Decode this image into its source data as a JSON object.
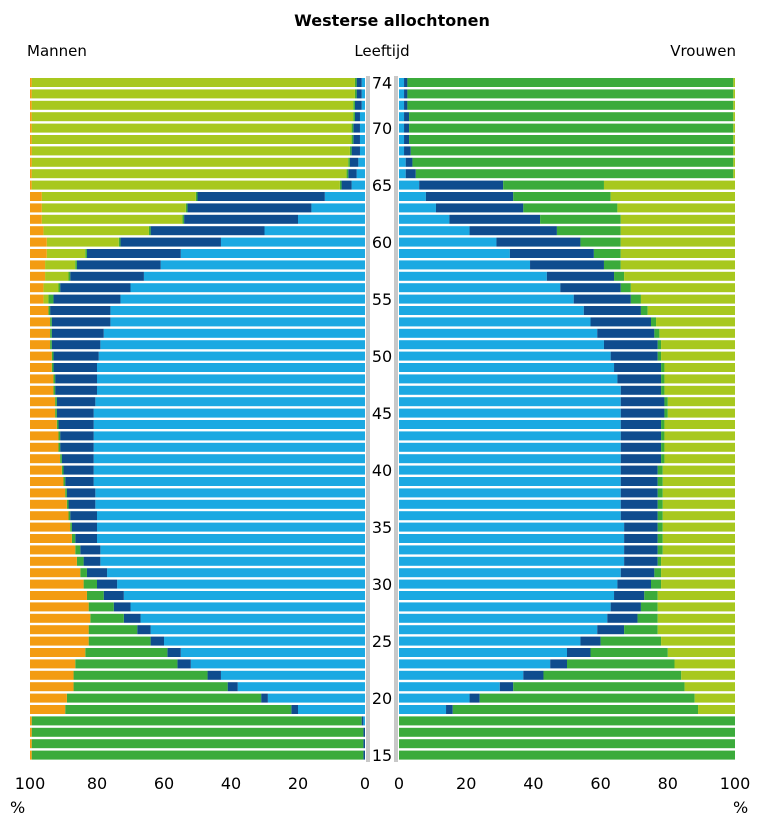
{
  "chart_data": {
    "type": "bar",
    "title": "Westerse allochtonen",
    "left_label": "Mannen",
    "center_label": "Leeftijd",
    "right_label": "Vrouwen",
    "x_unit_left": "%",
    "x_unit_right": "%",
    "xlim": [
      0,
      100
    ],
    "x_ticks": [
      "100",
      "80",
      "60",
      "40",
      "20",
      "0"
    ],
    "x_ticks_right": [
      "0",
      "20",
      "40",
      "60",
      "80",
      "100"
    ],
    "age_labels": [
      "15",
      "20",
      "25",
      "30",
      "35",
      "40",
      "45",
      "50",
      "55",
      "60",
      "65",
      "70",
      "74"
    ],
    "colors": {
      "light_blue": "#1ba9e2",
      "dark_blue": "#0f4c8e",
      "green": "#3bab3b",
      "yellow_green": "#a8c81e",
      "orange": "#f39c12",
      "axis_band": "#c8c8c8"
    },
    "segment_order_from_center": [
      "light_blue",
      "dark_blue",
      "green",
      "yellow_green",
      "orange"
    ],
    "ages": [
      15,
      16,
      17,
      18,
      19,
      20,
      21,
      22,
      23,
      24,
      25,
      26,
      27,
      28,
      29,
      30,
      31,
      32,
      33,
      34,
      35,
      36,
      37,
      38,
      39,
      40,
      41,
      42,
      43,
      44,
      45,
      46,
      47,
      48,
      49,
      50,
      51,
      52,
      53,
      54,
      55,
      56,
      57,
      58,
      59,
      60,
      61,
      62,
      63,
      64,
      65,
      66,
      67,
      68,
      69,
      70,
      71,
      72,
      73,
      74
    ],
    "men": {
      "cumulative": [
        [
          0,
          0.5,
          99.5,
          99.5
        ],
        [
          0,
          0.5,
          99.5,
          99.5
        ],
        [
          0,
          0.5,
          99.5,
          99.5
        ],
        [
          0.5,
          1.0,
          99.5,
          99.5
        ],
        [
          20,
          22,
          89.5,
          89.5
        ],
        [
          29,
          31,
          89,
          89
        ],
        [
          38,
          41,
          87,
          87
        ],
        [
          43,
          47,
          87,
          87
        ],
        [
          52,
          56,
          86.5,
          86.5
        ],
        [
          55,
          59,
          83.5,
          83.5
        ],
        [
          60,
          64,
          82.5,
          82.5
        ],
        [
          64,
          68,
          82.5,
          82.5
        ],
        [
          67,
          72,
          82,
          82
        ],
        [
          70,
          75,
          82.5,
          82.5
        ],
        [
          72,
          78,
          83,
          83
        ],
        [
          74,
          80,
          84,
          84
        ],
        [
          77,
          83,
          85,
          85
        ],
        [
          79,
          84,
          86,
          86
        ],
        [
          79,
          85,
          86.5,
          86.5
        ],
        [
          80,
          86.5,
          87.5,
          87.5
        ],
        [
          80,
          87.5,
          88,
          88
        ],
        [
          80,
          88,
          88.5,
          88.5
        ],
        [
          80.5,
          88.5,
          89,
          89
        ],
        [
          80.5,
          89,
          89.5,
          89.5
        ],
        [
          81,
          89.5,
          90,
          90
        ],
        [
          81,
          90,
          90.5,
          90.5
        ],
        [
          81,
          90.5,
          91,
          91
        ],
        [
          81,
          91,
          91.5,
          91.5
        ],
        [
          81,
          91,
          91.5,
          91.5
        ],
        [
          81,
          91.5,
          92,
          92
        ],
        [
          81,
          92,
          92.5,
          92.5
        ],
        [
          80.5,
          92,
          92.5,
          92.5
        ],
        [
          80,
          92.5,
          93,
          93
        ],
        [
          80,
          92.5,
          93,
          93
        ],
        [
          80,
          93,
          93.5,
          93.5
        ],
        [
          79.5,
          93,
          93.5,
          93.5
        ],
        [
          79,
          93.5,
          94,
          94
        ],
        [
          78,
          93.5,
          94,
          94
        ],
        [
          76,
          93.5,
          94,
          94
        ],
        [
          76,
          94,
          94.5,
          94.5
        ],
        [
          73,
          93,
          94.5,
          96
        ],
        [
          70,
          91,
          91.5,
          96
        ],
        [
          66,
          88,
          88.5,
          95.5
        ],
        [
          61,
          86,
          86.5,
          95.5
        ],
        [
          55,
          83,
          83.5,
          95
        ],
        [
          43,
          73,
          73.5,
          95
        ],
        [
          30,
          64,
          64.5,
          96
        ],
        [
          20,
          54,
          54.5,
          96.5
        ],
        [
          16,
          53,
          53.5,
          96.5
        ],
        [
          12,
          50,
          50.5,
          96.5
        ],
        [
          4,
          7,
          7.5,
          99.5
        ],
        [
          2.5,
          5,
          5.5,
          99.5
        ],
        [
          2,
          4.5,
          5,
          99.5
        ],
        [
          1.5,
          4,
          4.5,
          99.5
        ],
        [
          1.5,
          3.5,
          4,
          99.5
        ],
        [
          1.5,
          3.5,
          4,
          99.5
        ],
        [
          1.5,
          3,
          3.5,
          99.5
        ],
        [
          1,
          3,
          3.5,
          99.5
        ],
        [
          1,
          2.5,
          3,
          99.5
        ],
        [
          1,
          2.5,
          3,
          99.5
        ]
      ]
    },
    "women": {
      "cumulative": [
        [
          0,
          0,
          100,
          100
        ],
        [
          0,
          0,
          100,
          100
        ],
        [
          0,
          0,
          100,
          100
        ],
        [
          0,
          0,
          100,
          100
        ],
        [
          14,
          16,
          89,
          100
        ],
        [
          21,
          24,
          88,
          100
        ],
        [
          30,
          34,
          85,
          100
        ],
        [
          37,
          43,
          84,
          100
        ],
        [
          45,
          50,
          82,
          100
        ],
        [
          50,
          57,
          80,
          100
        ],
        [
          54,
          60,
          78,
          100
        ],
        [
          59,
          67,
          77,
          100
        ],
        [
          62,
          71,
          77,
          100
        ],
        [
          63,
          72,
          77,
          100
        ],
        [
          64,
          73,
          77,
          100
        ],
        [
          65,
          75,
          78,
          100
        ],
        [
          66,
          76,
          78,
          100
        ],
        [
          67,
          77,
          78,
          100
        ],
        [
          67,
          77,
          78.5,
          100
        ],
        [
          67,
          77,
          78.5,
          100
        ],
        [
          67,
          77,
          78.5,
          100
        ],
        [
          66,
          77,
          78.5,
          100
        ],
        [
          66,
          77,
          78.5,
          100
        ],
        [
          66,
          77,
          78.5,
          100
        ],
        [
          66,
          77,
          78.5,
          100
        ],
        [
          66,
          77,
          78.5,
          100
        ],
        [
          66,
          78,
          79,
          100
        ],
        [
          66,
          78,
          79,
          100
        ],
        [
          66,
          78,
          79,
          100
        ],
        [
          66,
          78,
          79,
          100
        ],
        [
          66,
          79,
          80,
          100
        ],
        [
          66,
          79,
          80,
          100
        ],
        [
          66,
          78,
          79,
          100
        ],
        [
          65,
          78,
          79,
          100
        ],
        [
          64,
          78,
          79,
          100
        ],
        [
          63,
          77,
          78,
          100
        ],
        [
          61,
          77,
          78,
          100
        ],
        [
          59,
          76,
          77.5,
          100
        ],
        [
          57,
          75,
          76.5,
          100
        ],
        [
          55,
          72,
          74,
          100
        ],
        [
          52,
          69,
          72,
          100
        ],
        [
          48,
          66,
          69,
          100
        ],
        [
          44,
          64,
          67,
          100
        ],
        [
          39,
          61,
          66,
          100
        ],
        [
          33,
          58,
          66,
          100
        ],
        [
          29,
          54,
          66,
          100
        ],
        [
          21,
          47,
          66,
          100
        ],
        [
          15,
          42,
          66,
          100
        ],
        [
          11,
          37,
          65,
          100
        ],
        [
          8,
          34,
          63,
          100
        ],
        [
          6,
          31,
          61,
          100
        ],
        [
          2,
          5,
          99.5,
          100
        ],
        [
          2,
          4,
          99.5,
          100
        ],
        [
          1.5,
          3.5,
          99.5,
          100
        ],
        [
          1.5,
          3,
          99.5,
          100
        ],
        [
          1.5,
          3,
          99.5,
          100
        ],
        [
          1.5,
          3,
          99.5,
          100
        ],
        [
          1.5,
          2.5,
          99.5,
          100
        ],
        [
          1.5,
          2.5,
          99.5,
          100
        ],
        [
          1.5,
          2.5,
          99.5,
          100
        ]
      ]
    }
  }
}
